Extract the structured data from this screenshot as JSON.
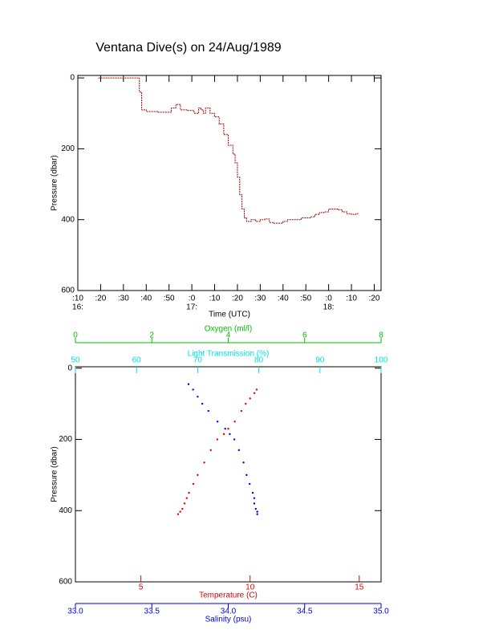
{
  "chart_data": [
    {
      "type": "line",
      "title": "Ventana Dive(s) on 24/Aug/1989",
      "xlabel": "Time (UTC)",
      "ylabel": "Pressure (dbar)",
      "color": "#a00000",
      "step": true,
      "y_inverted": true,
      "xlim": [
        10,
        143
      ],
      "ylim": [
        -7,
        600
      ],
      "xticks": [
        {
          "value": 10,
          "label": ":10"
        },
        {
          "value": 20,
          "label": ":20"
        },
        {
          "value": 30,
          "label": ":30"
        },
        {
          "value": 40,
          "label": ":40"
        },
        {
          "value": 50,
          "label": ":50"
        },
        {
          "value": 60,
          "label": ":0"
        },
        {
          "value": 70,
          "label": ":10"
        },
        {
          "value": 80,
          "label": ":20"
        },
        {
          "value": 90,
          "label": ":30"
        },
        {
          "value": 100,
          "label": ":40"
        },
        {
          "value": 110,
          "label": ":50"
        },
        {
          "value": 120,
          "label": ":0"
        },
        {
          "value": 130,
          "label": ":10"
        },
        {
          "value": 140,
          "label": ":20"
        }
      ],
      "x_hour_labels": [
        {
          "value": 10,
          "label": "16:"
        },
        {
          "value": 60,
          "label": "17:"
        },
        {
          "value": 120,
          "label": "18:"
        }
      ],
      "yticks": [
        0,
        200,
        400,
        600
      ],
      "x": [
        19,
        36,
        37,
        38,
        40,
        45,
        49,
        51,
        53,
        55,
        58,
        61,
        63,
        64,
        65,
        66,
        68,
        70,
        72,
        74,
        76,
        78,
        79,
        80,
        81,
        82,
        83,
        84,
        86,
        88,
        90,
        92,
        94,
        96,
        98,
        100,
        102,
        104,
        106,
        108,
        110,
        112,
        114,
        116,
        118,
        120,
        122,
        124,
        126,
        128,
        130,
        132,
        133
      ],
      "values": [
        0,
        0,
        40,
        90,
        95,
        97,
        97,
        85,
        75,
        90,
        92,
        100,
        85,
        90,
        100,
        85,
        100,
        110,
        130,
        160,
        190,
        215,
        240,
        280,
        330,
        370,
        395,
        405,
        400,
        405,
        400,
        398,
        408,
        410,
        410,
        405,
        400,
        400,
        400,
        395,
        395,
        392,
        385,
        380,
        378,
        370,
        370,
        372,
        378,
        383,
        385,
        383,
        383
      ]
    },
    {
      "type": "scatter",
      "ylabel": "Pressure (dbar)",
      "y_inverted": true,
      "ylim": [
        -4,
        600
      ],
      "yticks": [
        0,
        200,
        400,
        600
      ],
      "x_axes": [
        {
          "label": "Oxygen (ml/l)",
          "color": "#00c000",
          "position": "top",
          "lim": [
            0,
            8
          ],
          "ticks": [
            0,
            2,
            4,
            6,
            8
          ]
        },
        {
          "label": "Light Transmission (%)",
          "color": "#00e0e0",
          "position": "top",
          "lim": [
            50,
            100
          ],
          "ticks": [
            50,
            60,
            70,
            80,
            90,
            100
          ]
        },
        {
          "label": "Temperature (C)",
          "color": "#e00000",
          "position": "bottom",
          "lim": [
            2,
            16
          ],
          "ticks": [
            5,
            10,
            15
          ]
        },
        {
          "label": "Salinity (psu)",
          "color": "#0000e0",
          "position": "bottom",
          "lim": [
            33,
            35
          ],
          "ticks": [
            {
              "value": 33,
              "label": "33.0"
            },
            {
              "value": 33.5,
              "label": "33.5"
            },
            {
              "value": 34,
              "label": "34.0"
            },
            {
              "value": 34.5,
              "label": "34.5"
            },
            {
              "value": 35,
              "label": "35.0"
            }
          ]
        }
      ],
      "series": [
        {
          "color": "#e00000",
          "x_axis": 2,
          "x": [
            10.3,
            10.2,
            10.0,
            9.8,
            9.6,
            9.3,
            9.0,
            8.8,
            8.5,
            8.2,
            7.9,
            7.6,
            7.4,
            7.2,
            7.1,
            7.0,
            6.9,
            6.8,
            6.7
          ],
          "values": [
            60,
            70,
            85,
            100,
            120,
            150,
            170,
            185,
            200,
            230,
            265,
            300,
            325,
            350,
            365,
            380,
            395,
            403,
            410
          ]
        },
        {
          "color": "#0000e0",
          "x_axis": 3,
          "x": [
            33.74,
            33.77,
            33.8,
            33.83,
            33.87,
            33.93,
            33.98,
            34.01,
            34.04,
            34.07,
            34.1,
            34.12,
            34.14,
            34.16,
            34.17,
            34.17,
            34.18,
            34.19,
            34.19
          ],
          "values": [
            45,
            60,
            80,
            100,
            120,
            150,
            170,
            185,
            200,
            230,
            265,
            300,
            325,
            350,
            365,
            380,
            395,
            403,
            410
          ]
        }
      ]
    }
  ]
}
